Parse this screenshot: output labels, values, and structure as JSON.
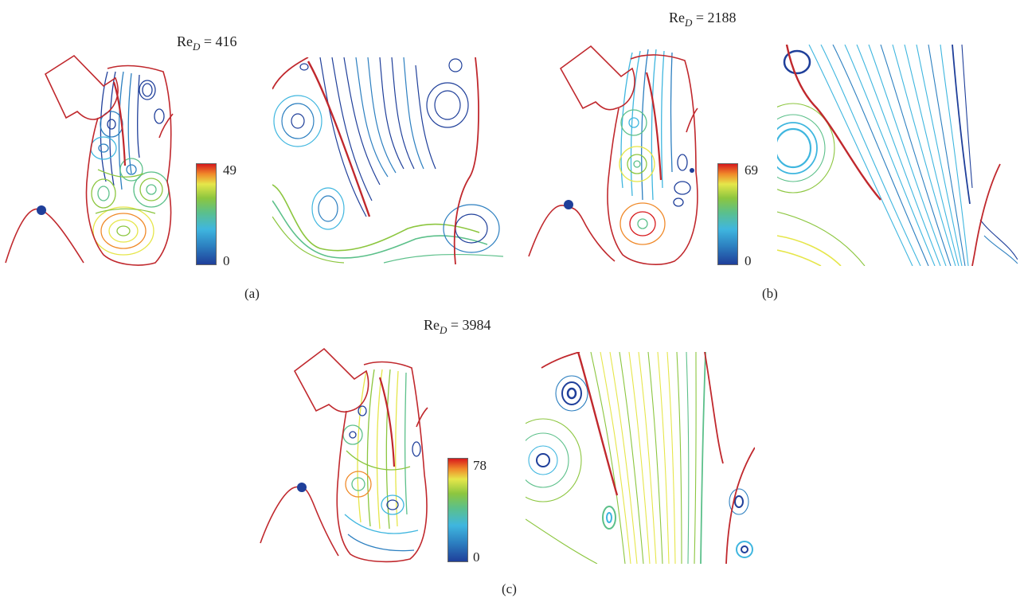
{
  "panels": [
    {
      "id": "a",
      "re_prefix": "Re",
      "re_sub": "D",
      "re_value": "= 416",
      "cbar_max": "49",
      "cbar_min": "0",
      "caption": "(a)"
    },
    {
      "id": "b",
      "re_prefix": "Re",
      "re_sub": "D",
      "re_value": "= 2188",
      "cbar_max": "69",
      "cbar_min": "0",
      "caption": "(b)"
    },
    {
      "id": "c",
      "re_prefix": "Re",
      "re_sub": "D",
      "re_value": "= 3984",
      "cbar_max": "78",
      "cbar_min": "0",
      "caption": "(c)"
    }
  ],
  "colormap": [
    "#1f3f9a",
    "#2c7fc0",
    "#3fb6df",
    "#5cc08a",
    "#8cc63f",
    "#e6e64a",
    "#f08a2a",
    "#d7191c"
  ],
  "outline_color": "#c0282d",
  "marker_color": "#1f3f9a"
}
